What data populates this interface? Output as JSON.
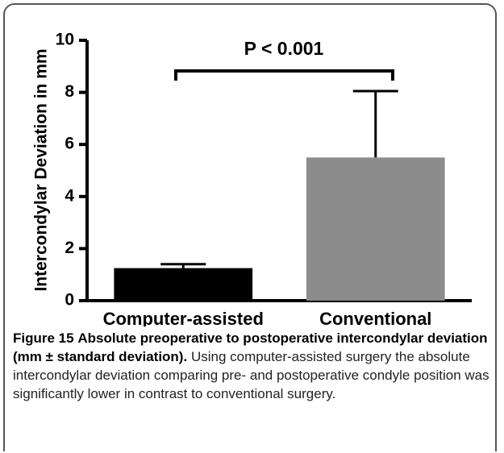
{
  "chart_data": {
    "type": "bar",
    "ylabel": "Intercondylar Deviation in mm",
    "categories": [
      "Computer-assisted",
      "Conventional"
    ],
    "values": [
      1.25,
      5.5
    ],
    "errors": [
      0.15,
      2.55
    ],
    "colors": [
      "#000000",
      "#8c8c8c"
    ],
    "ylim": [
      0,
      10
    ],
    "yticks": [
      0,
      2,
      4,
      6,
      8,
      10
    ],
    "annotation": "P < 0.001"
  },
  "caption": {
    "label": "Figure 15",
    "title": "Absolute preoperative to postoperative intercondylar deviation (mm ± standard deviation).",
    "text": "Using computer-assisted surgery the absolute intercondylar deviation comparing pre- and postoperative condyle position was significantly lower in contrast to conventional surgery."
  }
}
